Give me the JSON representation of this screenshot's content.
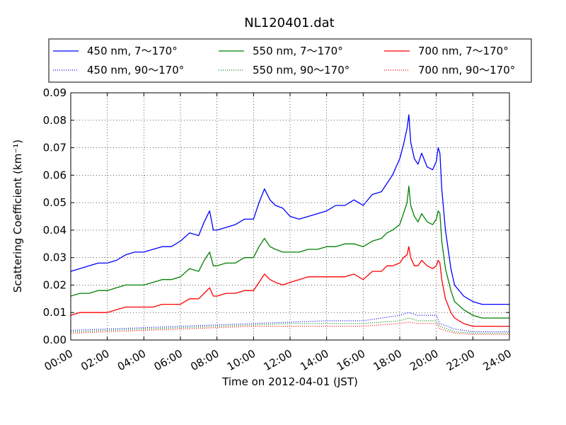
{
  "chart_data": {
    "type": "line",
    "title": "NL120401.dat",
    "xlabel": "Time on 2012-04-01 (JST)",
    "ylabel": "Scattering Coefficient (km⁻¹)",
    "x_unit": "hours",
    "xlim": [
      0,
      24
    ],
    "ylim": [
      0,
      0.09
    ],
    "grid": true,
    "legend_position": "top",
    "xticks": [
      {
        "value": 0,
        "label": "00:00"
      },
      {
        "value": 2,
        "label": "02:00"
      },
      {
        "value": 4,
        "label": "04:00"
      },
      {
        "value": 6,
        "label": "06:00"
      },
      {
        "value": 8,
        "label": "08:00"
      },
      {
        "value": 10,
        "label": "10:00"
      },
      {
        "value": 12,
        "label": "12:00"
      },
      {
        "value": 14,
        "label": "14:00"
      },
      {
        "value": 16,
        "label": "16:00"
      },
      {
        "value": 18,
        "label": "18:00"
      },
      {
        "value": 20,
        "label": "20:00"
      },
      {
        "value": 22,
        "label": "22:00"
      },
      {
        "value": 24,
        "label": "24:00"
      }
    ],
    "yticks": [
      {
        "value": 0,
        "label": "0.00"
      },
      {
        "value": 0.01,
        "label": "0.01"
      },
      {
        "value": 0.02,
        "label": "0.02"
      },
      {
        "value": 0.03,
        "label": "0.03"
      },
      {
        "value": 0.04,
        "label": "0.04"
      },
      {
        "value": 0.05,
        "label": "0.05"
      },
      {
        "value": 0.06,
        "label": "0.06"
      },
      {
        "value": 0.07,
        "label": "0.07"
      },
      {
        "value": 0.08,
        "label": "0.08"
      },
      {
        "value": 0.09,
        "label": "0.09"
      }
    ],
    "series": [
      {
        "name": "450 nm, 7～170°",
        "color": "#0000ff",
        "style": "solid",
        "x": [
          0,
          0.5,
          1,
          1.5,
          2,
          2.5,
          3,
          3.5,
          4,
          4.5,
          5,
          5.5,
          6,
          6.5,
          7,
          7.3,
          7.6,
          7.8,
          8,
          8.5,
          9,
          9.5,
          10,
          10.3,
          10.6,
          10.9,
          11.2,
          11.6,
          12,
          12.5,
          13,
          13.5,
          14,
          14.5,
          15,
          15.5,
          16,
          16.5,
          17,
          17.3,
          17.6,
          18,
          18.2,
          18.4,
          18.5,
          18.6,
          18.8,
          19,
          19.2,
          19.5,
          19.8,
          20,
          20.1,
          20.2,
          20.3,
          20.5,
          20.8,
          21,
          21.5,
          22,
          22.5,
          23,
          23.5,
          24
        ],
        "y": [
          0.025,
          0.026,
          0.027,
          0.028,
          0.028,
          0.029,
          0.031,
          0.032,
          0.032,
          0.033,
          0.034,
          0.034,
          0.036,
          0.039,
          0.038,
          0.043,
          0.047,
          0.04,
          0.04,
          0.041,
          0.042,
          0.044,
          0.044,
          0.05,
          0.055,
          0.051,
          0.049,
          0.048,
          0.045,
          0.044,
          0.045,
          0.046,
          0.047,
          0.049,
          0.049,
          0.051,
          0.049,
          0.053,
          0.054,
          0.057,
          0.06,
          0.066,
          0.071,
          0.077,
          0.082,
          0.072,
          0.066,
          0.064,
          0.068,
          0.063,
          0.062,
          0.065,
          0.07,
          0.068,
          0.055,
          0.04,
          0.026,
          0.02,
          0.016,
          0.014,
          0.013,
          0.013,
          0.013,
          0.013
        ]
      },
      {
        "name": "450 nm, 90～170°",
        "color": "#0000ff",
        "style": "dotted",
        "x": [
          0,
          2,
          4,
          6,
          8,
          10,
          12,
          14,
          16,
          18,
          18.5,
          19,
          20,
          20.2,
          21,
          22,
          23,
          24
        ],
        "y": [
          0.0035,
          0.004,
          0.0045,
          0.005,
          0.0055,
          0.006,
          0.0065,
          0.007,
          0.007,
          0.009,
          0.01,
          0.009,
          0.009,
          0.006,
          0.004,
          0.003,
          0.003,
          0.003
        ]
      },
      {
        "name": "550 nm, 7～170°",
        "color": "#008000",
        "style": "solid",
        "x": [
          0,
          0.5,
          1,
          1.5,
          2,
          2.5,
          3,
          3.5,
          4,
          4.5,
          5,
          5.5,
          6,
          6.5,
          7,
          7.3,
          7.6,
          7.8,
          8,
          8.5,
          9,
          9.5,
          10,
          10.3,
          10.6,
          10.9,
          11.2,
          11.6,
          12,
          12.5,
          13,
          13.5,
          14,
          14.5,
          15,
          15.5,
          16,
          16.5,
          17,
          17.3,
          17.6,
          18,
          18.2,
          18.4,
          18.5,
          18.6,
          18.8,
          19,
          19.2,
          19.5,
          19.8,
          20,
          20.1,
          20.2,
          20.3,
          20.5,
          20.8,
          21,
          21.5,
          22,
          22.5,
          23,
          23.5,
          24
        ],
        "y": [
          0.016,
          0.017,
          0.017,
          0.018,
          0.018,
          0.019,
          0.02,
          0.02,
          0.02,
          0.021,
          0.022,
          0.022,
          0.023,
          0.026,
          0.025,
          0.029,
          0.032,
          0.027,
          0.027,
          0.028,
          0.028,
          0.03,
          0.03,
          0.034,
          0.037,
          0.034,
          0.033,
          0.032,
          0.032,
          0.032,
          0.033,
          0.033,
          0.034,
          0.034,
          0.035,
          0.035,
          0.034,
          0.036,
          0.037,
          0.039,
          0.04,
          0.042,
          0.046,
          0.05,
          0.056,
          0.049,
          0.045,
          0.043,
          0.046,
          0.043,
          0.042,
          0.044,
          0.047,
          0.046,
          0.036,
          0.026,
          0.018,
          0.014,
          0.011,
          0.009,
          0.008,
          0.008,
          0.008,
          0.008
        ]
      },
      {
        "name": "550 nm, 90～170°",
        "color": "#008000",
        "style": "dotted",
        "x": [
          0,
          2,
          4,
          6,
          8,
          10,
          12,
          14,
          16,
          18,
          18.5,
          19,
          20,
          20.2,
          21,
          22,
          23,
          24
        ],
        "y": [
          0.003,
          0.0035,
          0.004,
          0.0045,
          0.005,
          0.0055,
          0.006,
          0.006,
          0.006,
          0.007,
          0.008,
          0.007,
          0.007,
          0.005,
          0.003,
          0.0025,
          0.0025,
          0.0025
        ]
      },
      {
        "name": "700 nm, 7～170°",
        "color": "#ff0000",
        "style": "solid",
        "x": [
          0,
          0.5,
          1,
          1.5,
          2,
          2.5,
          3,
          3.5,
          4,
          4.5,
          5,
          5.5,
          6,
          6.5,
          7,
          7.3,
          7.6,
          7.8,
          8,
          8.5,
          9,
          9.5,
          10,
          10.3,
          10.6,
          10.9,
          11.2,
          11.6,
          12,
          12.5,
          13,
          13.5,
          14,
          14.5,
          15,
          15.5,
          16,
          16.5,
          17,
          17.3,
          17.6,
          18,
          18.2,
          18.4,
          18.5,
          18.6,
          18.8,
          19,
          19.2,
          19.5,
          19.8,
          20,
          20.1,
          20.2,
          20.3,
          20.5,
          20.8,
          21,
          21.5,
          22,
          22.5,
          23,
          23.5,
          24
        ],
        "y": [
          0.009,
          0.01,
          0.01,
          0.01,
          0.01,
          0.011,
          0.012,
          0.012,
          0.012,
          0.012,
          0.013,
          0.013,
          0.013,
          0.015,
          0.015,
          0.017,
          0.019,
          0.016,
          0.016,
          0.017,
          0.017,
          0.018,
          0.018,
          0.021,
          0.024,
          0.022,
          0.021,
          0.02,
          0.021,
          0.022,
          0.023,
          0.023,
          0.023,
          0.023,
          0.023,
          0.024,
          0.022,
          0.025,
          0.025,
          0.027,
          0.027,
          0.028,
          0.03,
          0.031,
          0.034,
          0.03,
          0.027,
          0.027,
          0.029,
          0.027,
          0.026,
          0.027,
          0.029,
          0.028,
          0.022,
          0.015,
          0.01,
          0.008,
          0.006,
          0.005,
          0.005,
          0.005,
          0.005,
          0.005
        ]
      },
      {
        "name": "700 nm, 90～170°",
        "color": "#ff0000",
        "style": "dotted",
        "x": [
          0,
          2,
          4,
          6,
          8,
          10,
          12,
          14,
          16,
          18,
          18.5,
          19,
          20,
          20.2,
          21,
          22,
          23,
          24
        ],
        "y": [
          0.0025,
          0.003,
          0.0035,
          0.004,
          0.0045,
          0.005,
          0.005,
          0.005,
          0.005,
          0.006,
          0.0065,
          0.006,
          0.006,
          0.004,
          0.0025,
          0.002,
          0.002,
          0.002
        ]
      }
    ]
  }
}
